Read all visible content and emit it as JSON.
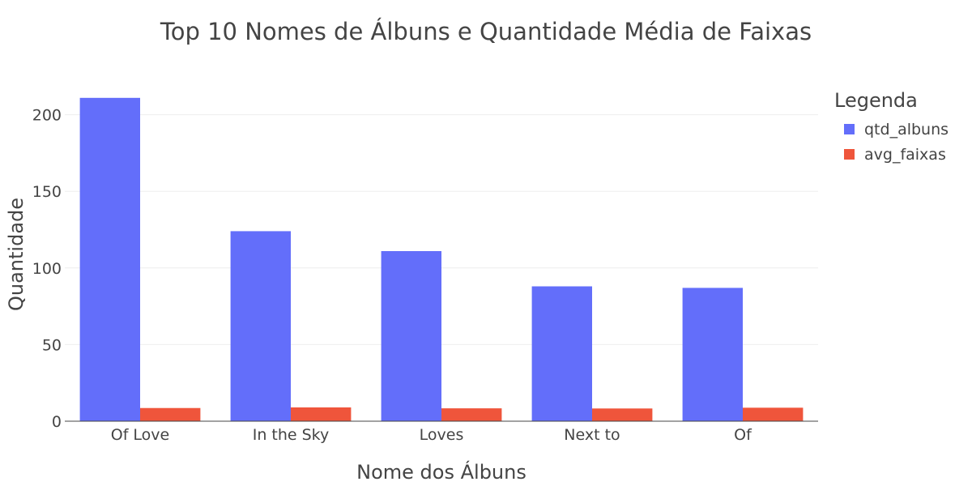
{
  "chart_data": {
    "type": "bar",
    "title": "Top 10 Nomes de Álbuns e Quantidade Média de Faixas",
    "xlabel": "Nome dos Álbuns",
    "ylabel": "Quantidade",
    "categories": [
      "Of Love",
      "In the Sky",
      "Loves",
      "Next to",
      "Of"
    ],
    "series": [
      {
        "name": "qtd_albuns",
        "color": "#636efa",
        "values": [
          211,
          124,
          111,
          88,
          87
        ]
      },
      {
        "name": "avg_faixas",
        "color": "#ef553b",
        "values": [
          8.6,
          9.0,
          8.4,
          8.3,
          8.8
        ]
      }
    ],
    "ylim": [
      0,
      222
    ],
    "yticks": [
      0,
      50,
      100,
      150,
      200
    ],
    "grid": true,
    "legend": {
      "title": "Legenda",
      "position": "top-right"
    }
  }
}
